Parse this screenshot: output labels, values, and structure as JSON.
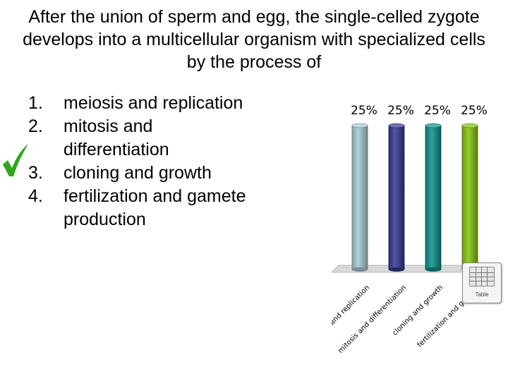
{
  "question": "After the union of sperm and egg, the single-celled zygote develops into a multicellular organism with specialized cells by the process of",
  "answers": [
    {
      "number": "1.",
      "text": "meiosis and replication"
    },
    {
      "number": "2.",
      "text": "mitosis and differentiation"
    },
    {
      "number": "3.",
      "text": "cloning and growth"
    },
    {
      "number": "4.",
      "text": "fertilization and gamete production"
    }
  ],
  "correct_answer_marker": {
    "icon": "checkmark-icon",
    "answer_index": 1,
    "color": "#2fa81c"
  },
  "table_button": {
    "label": "Table",
    "icon": "table-grid-icon"
  },
  "chart_data": {
    "type": "bar",
    "categories": [
      "meiosis and replication",
      "mitosis and differentiation",
      "cloning and growth",
      "fertilization and game..."
    ],
    "values": [
      25,
      25,
      25,
      25
    ],
    "value_labels": [
      "25%",
      "25%",
      "25%",
      "25%"
    ],
    "colors": [
      "#a7c9d2",
      "#34388f",
      "#0a8f8b",
      "#86c20d"
    ],
    "title": "",
    "xlabel": "",
    "ylabel": "",
    "ylim": [
      0,
      25
    ],
    "grid": false,
    "legend": "none"
  }
}
